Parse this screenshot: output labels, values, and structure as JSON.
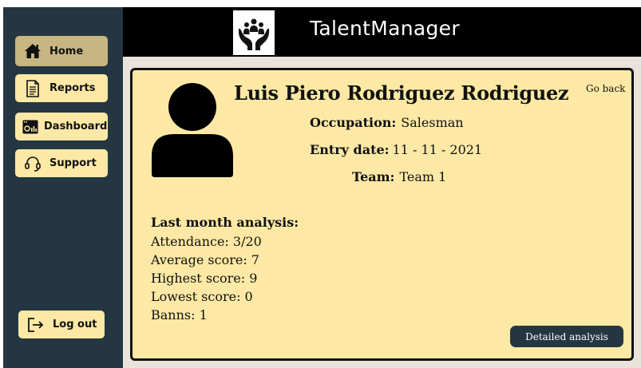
{
  "app": {
    "title": "TalentManager",
    "logo_icon": "team-care-icon"
  },
  "sidebar": {
    "items": [
      {
        "label": "Home",
        "icon": "home-icon",
        "active": true
      },
      {
        "label": "Reports",
        "icon": "document-icon",
        "active": false
      },
      {
        "label": "Dashboard",
        "icon": "dashboard-icon",
        "active": false
      },
      {
        "label": "Support",
        "icon": "headset-icon",
        "active": false
      }
    ],
    "logout": {
      "label": "Log out",
      "icon": "logout-icon"
    }
  },
  "profile": {
    "name": "Luis Piero  Rodriguez Rodriguez",
    "go_back": "Go back",
    "occupation_label": "Occupation:",
    "occupation_value": "Salesman",
    "entry_label": "Entry date:",
    "entry_value": "11 - 11 - 2021",
    "team_label": "Team:",
    "team_value": "Team 1"
  },
  "analysis": {
    "title": "Last month analysis:",
    "items": [
      "Attendance: 3/20",
      "Average score: 7",
      "Highest score: 9",
      "Lowest score: 0",
      "Banns: 1"
    ],
    "detail_button": "Detailed analysis"
  },
  "colors": {
    "sidebar": "#243642",
    "button": "#fde9a5",
    "active_button": "#c9b582",
    "card": "#fde9a5",
    "header": "#000000"
  }
}
